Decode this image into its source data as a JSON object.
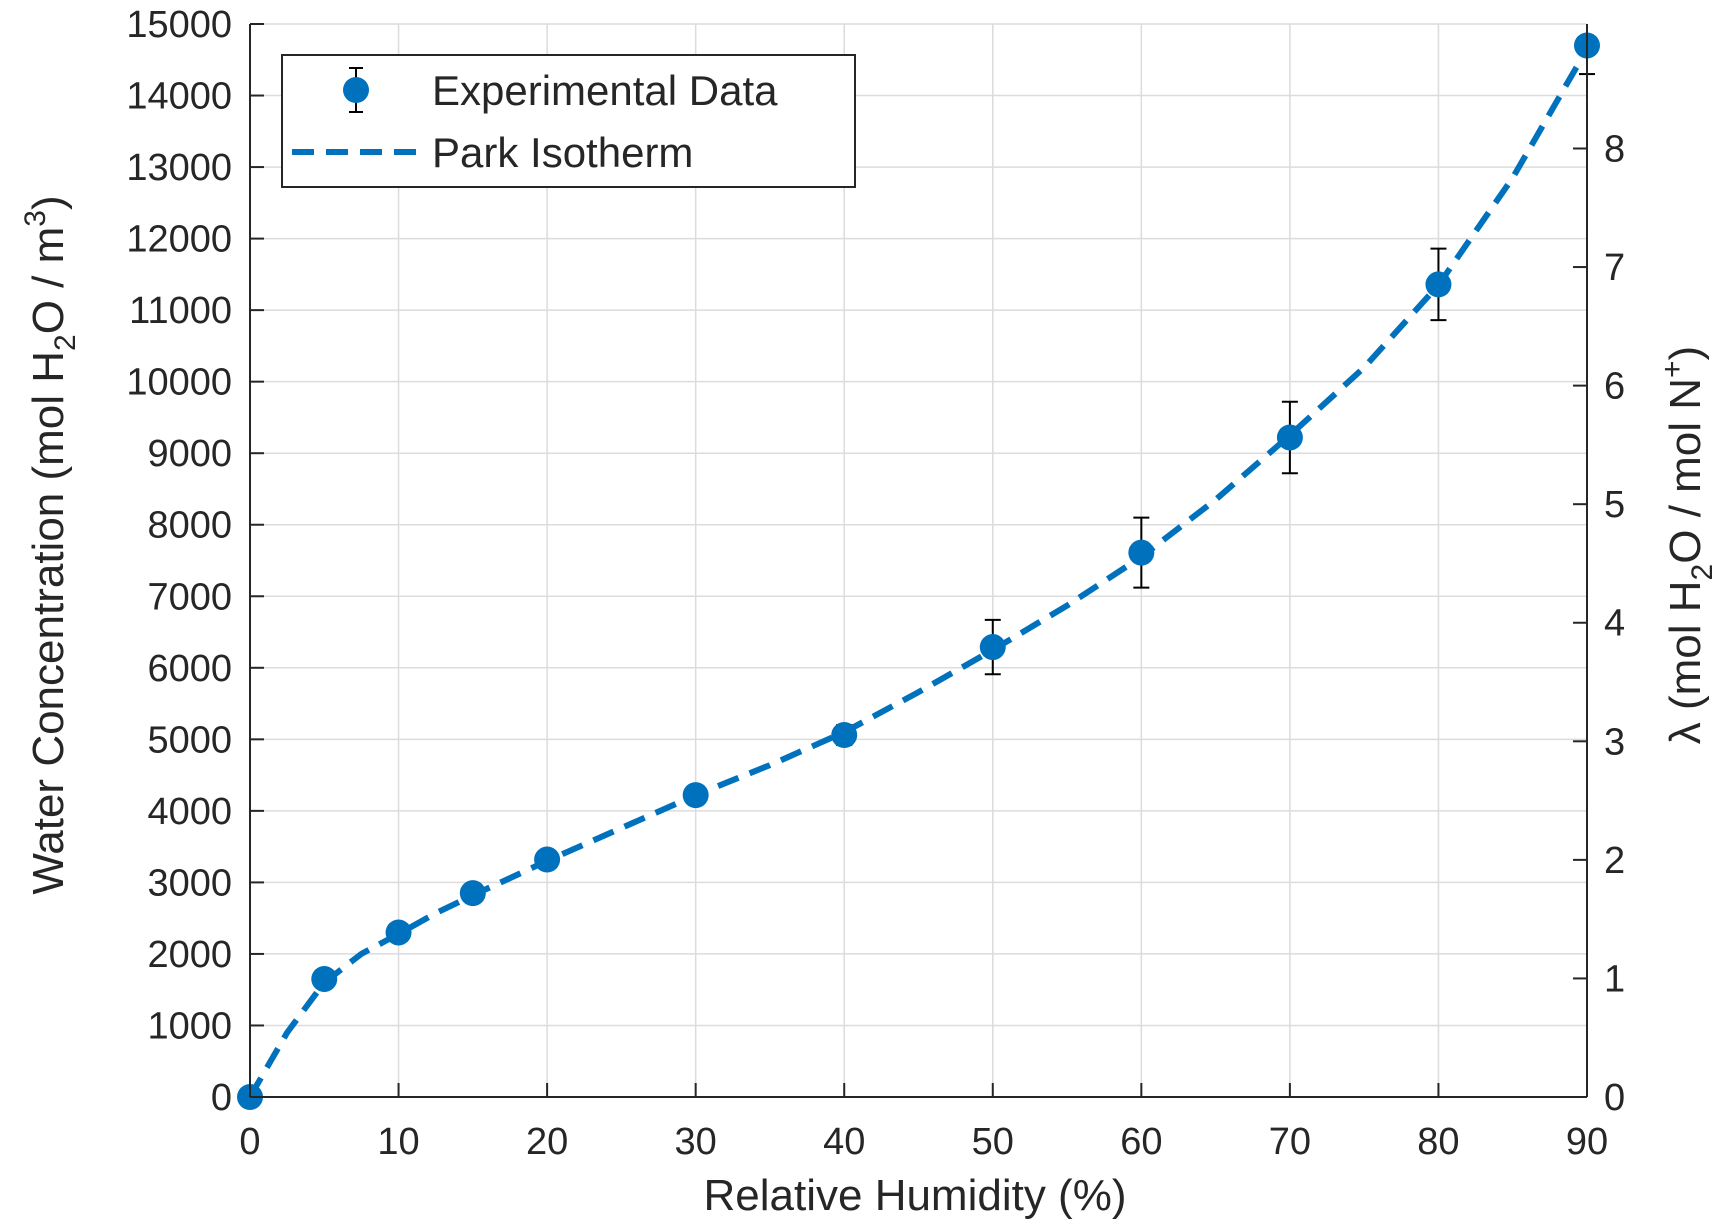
{
  "chart_data": {
    "type": "scatter",
    "title": "",
    "xlabel": "Relative Humidity (%)",
    "ylabel": {
      "pre": "Water Concentration (mol H",
      "sub": "2",
      "mid": "O / m",
      "sup": "3",
      "post": ")"
    },
    "y2label": {
      "pre": "λ (mol H",
      "sub": "2",
      "mid": "O / mol N",
      "sup": "+",
      "post": ")"
    },
    "xlim": [
      0,
      90
    ],
    "ylim": [
      0,
      15000
    ],
    "y2lim": [
      0,
      9.05
    ],
    "xticks": [
      0,
      10,
      20,
      30,
      40,
      50,
      60,
      70,
      80,
      90
    ],
    "yticks": [
      0,
      1000,
      2000,
      3000,
      4000,
      5000,
      6000,
      7000,
      8000,
      9000,
      10000,
      11000,
      12000,
      13000,
      14000,
      15000
    ],
    "y2ticks": [
      0,
      1,
      2,
      3,
      4,
      5,
      6,
      7,
      8
    ],
    "grid": true,
    "legend_position": "top-left",
    "colors": {
      "series": "#0072BD",
      "errorbar": "#000000",
      "axis": "#262626",
      "grid": "#dcdcdc"
    },
    "series": [
      {
        "name": "Experimental Data",
        "style": "markers-with-errorbars",
        "x": [
          0,
          5,
          10,
          15,
          20,
          30,
          40,
          50,
          60,
          70,
          80,
          90
        ],
        "y": [
          0,
          1650,
          2300,
          2850,
          3320,
          4220,
          5060,
          6290,
          7610,
          9220,
          11360,
          14700
        ],
        "yerr_low": [
          0,
          50,
          60,
          70,
          80,
          100,
          140,
          380,
          490,
          500,
          500,
          400
        ],
        "yerr_high": [
          0,
          50,
          60,
          70,
          80,
          100,
          140,
          380,
          490,
          500,
          500,
          0
        ]
      },
      {
        "name": "Park Isotherm",
        "style": "dashed-line",
        "x": [
          0,
          2.5,
          5,
          7.5,
          10,
          12.5,
          15,
          17.5,
          20,
          25,
          30,
          35,
          40,
          45,
          50,
          55,
          60,
          65,
          70,
          75,
          80,
          85,
          90
        ],
        "y": [
          0,
          900,
          1600,
          2000,
          2280,
          2570,
          2820,
          3060,
          3300,
          3760,
          4220,
          4640,
          5100,
          5660,
          6250,
          6870,
          7550,
          8350,
          9250,
          10200,
          11350,
          12850,
          14650
        ]
      }
    ]
  }
}
